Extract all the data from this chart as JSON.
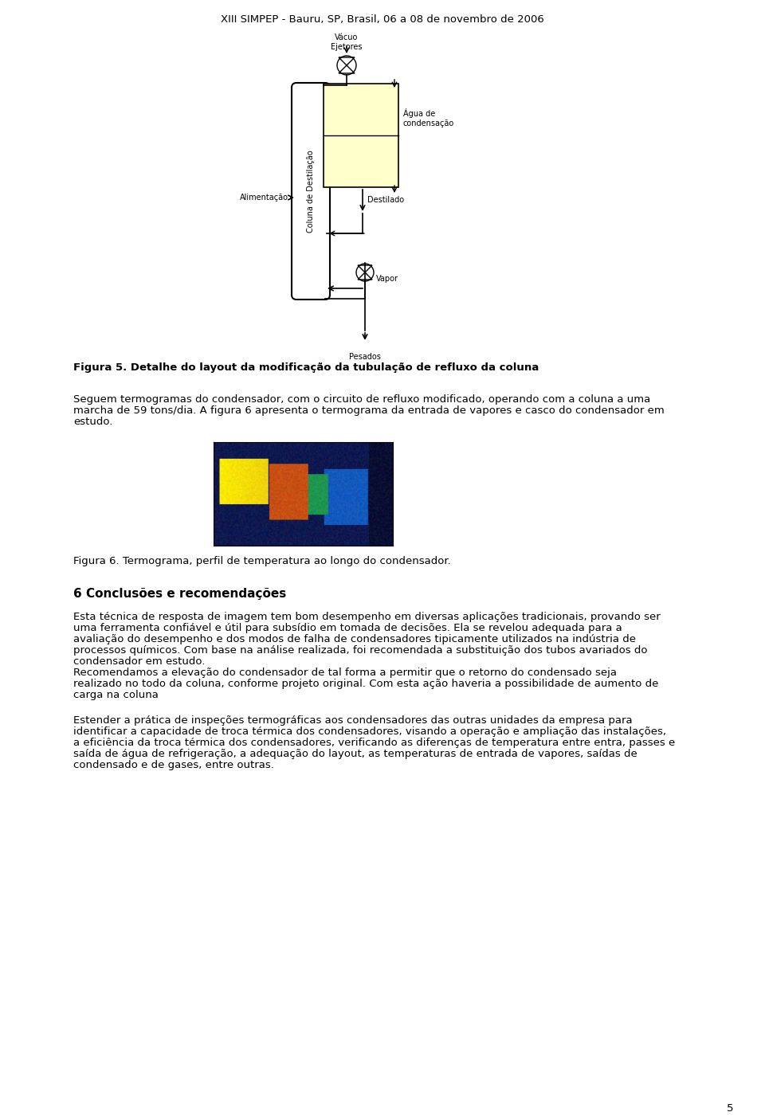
{
  "header": "XIII SIMPEP - Bauru, SP, Brasil, 06 a 08 de novembro de 2006",
  "fig5_caption": "Figura 5. Detalhe do layout da modificação da tubulação de refluxo da coluna",
  "fig6_caption": "Figura 6. Termograma, perfil de temperatura ao longo do condensador.",
  "page_number": "5",
  "section_title": "6 Conclusões e recomendações",
  "diag_vacuo_label": "Vácuo\nEjetores",
  "diag_agua_label": "Água de\ncondensação",
  "diag_destilado_label": "Destilado",
  "diag_alimentacao_label": "Alimentação",
  "diag_coluna_label": "Coluna de Destilação",
  "diag_vapor_label": "Vapor",
  "diag_pesados_label": "Pesados",
  "bg_color": "#ffffff",
  "text_color": "#000000",
  "condenser_fill": "#ffffcc",
  "font_size_header": 9.5,
  "font_size_body": 9.5,
  "font_size_caption": 9.5,
  "font_size_section": 11,
  "font_size_diagram": 7,
  "lines_p1": [
    "Seguem termogramas do condensador, com o circuito de refluxo modificado, operando com a coluna a uma",
    "marcha de 59 tons/dia. A figura 6 apresenta o termograma da entrada de vapores e casco do condensador em",
    "estudo."
  ],
  "lines_conc": [
    "Esta técnica de resposta de imagem tem bom desempenho em diversas aplicações tradicionais, provando ser",
    "uma ferramenta confiável e útil para subsídio em tomada de decisões. Ela se revelou adequada para a",
    "avaliação do desempenho e dos modos de falha de condensadores tipicamente utilizados na indústria de",
    "processos químicos. Com base na análise realizada, foi recomendada a substituição dos tubos avariados do",
    "condensador em estudo.",
    "Recomendamos a elevação do condensador de tal forma a permitir que o retorno do condensado seja",
    "realizado no todo da coluna, conforme projeto original. Com esta ação haveria a possibilidade de aumento de",
    "carga na coluna"
  ],
  "lines_final": [
    "Estender a prática de inspeções termográficas aos condensadores das outras unidades da empresa para",
    "identificar a capacidade de troca térmica dos condensadores, visando a operação e ampliação das instalações,",
    "a eficiência da troca térmica dos condensadores, verificando as diferenças de temperatura entre entra, passes e",
    "saída de água de refrigeração, a adequação do layout, as temperaturas de entrada de vapores, saídas de",
    "condensado e de gases, entre outras."
  ]
}
